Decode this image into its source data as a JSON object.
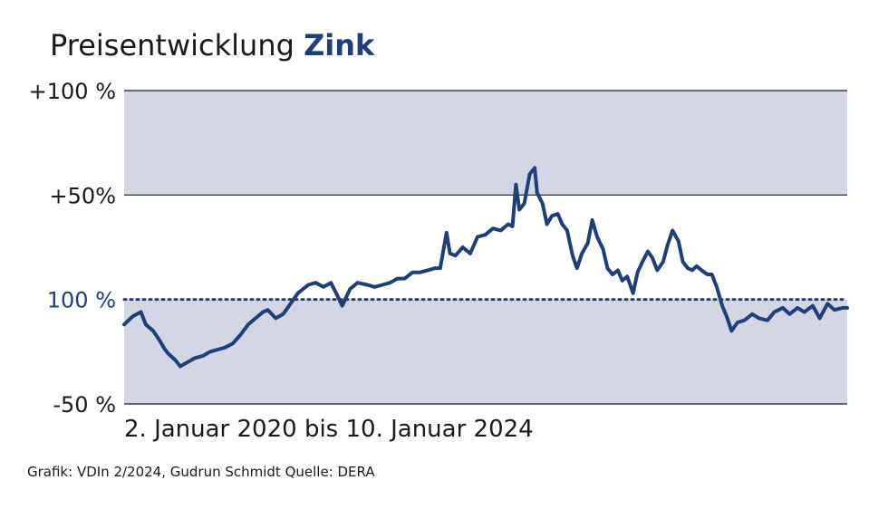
{
  "header": {
    "title_prefix": "Preisentwicklung",
    "title_accent": "Zink"
  },
  "footer": {
    "period": "2. Januar 2020 bis 10. Januar 2024",
    "source": "Grafik: VDIn 2/2024, Gudrun Schmidt Quelle: DERA"
  },
  "colors": {
    "line": "#1e3f7a",
    "band": "#d3d6e5",
    "grid": "#1a1a1a",
    "accent": "#1e3f7a"
  },
  "chart_data": {
    "type": "line",
    "title": "Preisentwicklung Zink",
    "xlabel": "2. Januar 2020 bis 10. Januar 2024",
    "ylabel": "",
    "x_start": "2020-01-02",
    "x_end": "2024-01-10",
    "ylim": [
      -50,
      100
    ],
    "y_ticks": [
      {
        "value": 100,
        "label": "+100 %"
      },
      {
        "value": 50,
        "label": "+50%"
      },
      {
        "value": 0,
        "label": "100 %"
      },
      {
        "value": -50,
        "label": "-50 %"
      }
    ],
    "baseline": {
      "value": 0,
      "style": "dotted"
    },
    "shaded_bands": [
      [
        50,
        100
      ],
      [
        -50,
        0
      ]
    ],
    "grid": false,
    "series": [
      {
        "values": [
          [
            "2020-01-02",
            -12
          ],
          [
            "2020-01-20",
            -8
          ],
          [
            "2020-02-05",
            -6
          ],
          [
            "2020-02-15",
            -12
          ],
          [
            "2020-03-01",
            -15
          ],
          [
            "2020-03-15",
            -20
          ],
          [
            "2020-03-25",
            -24
          ],
          [
            "2020-04-01",
            -26
          ],
          [
            "2020-04-15",
            -29
          ],
          [
            "2020-04-25",
            -32
          ],
          [
            "2020-05-10",
            -30
          ],
          [
            "2020-05-25",
            -28
          ],
          [
            "2020-06-10",
            -27
          ],
          [
            "2020-06-25",
            -25
          ],
          [
            "2020-07-10",
            -24
          ],
          [
            "2020-07-25",
            -23
          ],
          [
            "2020-08-10",
            -21
          ],
          [
            "2020-08-25",
            -17
          ],
          [
            "2020-09-10",
            -12
          ],
          [
            "2020-09-25",
            -9
          ],
          [
            "2020-10-10",
            -6
          ],
          [
            "2020-10-20",
            -5
          ],
          [
            "2020-11-05",
            -9
          ],
          [
            "2020-11-20",
            -7
          ],
          [
            "2020-12-05",
            -2
          ],
          [
            "2020-12-20",
            3
          ],
          [
            "2021-01-10",
            7
          ],
          [
            "2021-01-25",
            8
          ],
          [
            "2021-02-10",
            6
          ],
          [
            "2021-02-25",
            8
          ],
          [
            "2021-03-10",
            2
          ],
          [
            "2021-03-20",
            -3
          ],
          [
            "2021-04-05",
            5
          ],
          [
            "2021-04-20",
            8
          ],
          [
            "2021-05-10",
            7
          ],
          [
            "2021-05-25",
            6
          ],
          [
            "2021-06-10",
            7
          ],
          [
            "2021-06-25",
            8
          ],
          [
            "2021-07-10",
            10
          ],
          [
            "2021-07-25",
            10
          ],
          [
            "2021-08-10",
            13
          ],
          [
            "2021-08-25",
            13
          ],
          [
            "2021-09-10",
            14
          ],
          [
            "2021-09-25",
            15
          ],
          [
            "2021-10-05",
            15
          ],
          [
            "2021-10-18",
            32
          ],
          [
            "2021-10-25",
            22
          ],
          [
            "2021-11-05",
            21
          ],
          [
            "2021-11-20",
            25
          ],
          [
            "2021-12-05",
            22
          ],
          [
            "2021-12-20",
            30
          ],
          [
            "2022-01-05",
            31
          ],
          [
            "2022-01-20",
            34
          ],
          [
            "2022-02-05",
            33
          ],
          [
            "2022-02-20",
            36
          ],
          [
            "2022-03-01",
            35
          ],
          [
            "2022-03-08",
            55
          ],
          [
            "2022-03-15",
            43
          ],
          [
            "2022-03-25",
            46
          ],
          [
            "2022-04-05",
            60
          ],
          [
            "2022-04-15",
            63
          ],
          [
            "2022-04-20",
            51
          ],
          [
            "2022-05-01",
            46
          ],
          [
            "2022-05-10",
            36
          ],
          [
            "2022-05-20",
            40
          ],
          [
            "2022-06-01",
            41
          ],
          [
            "2022-06-10",
            36
          ],
          [
            "2022-06-20",
            33
          ],
          [
            "2022-07-01",
            21
          ],
          [
            "2022-07-10",
            15
          ],
          [
            "2022-07-20",
            22
          ],
          [
            "2022-08-01",
            27
          ],
          [
            "2022-08-10",
            38
          ],
          [
            "2022-08-20",
            30
          ],
          [
            "2022-09-01",
            24
          ],
          [
            "2022-09-10",
            15
          ],
          [
            "2022-09-20",
            12
          ],
          [
            "2022-10-01",
            14
          ],
          [
            "2022-10-10",
            9
          ],
          [
            "2022-10-20",
            11
          ],
          [
            "2022-11-01",
            3
          ],
          [
            "2022-11-10",
            13
          ],
          [
            "2022-11-20",
            18
          ],
          [
            "2022-12-01",
            23
          ],
          [
            "2022-12-10",
            20
          ],
          [
            "2022-12-20",
            14
          ],
          [
            "2023-01-01",
            18
          ],
          [
            "2023-01-10",
            26
          ],
          [
            "2023-01-20",
            33
          ],
          [
            "2023-02-01",
            28
          ],
          [
            "2023-02-10",
            18
          ],
          [
            "2023-02-20",
            15
          ],
          [
            "2023-03-01",
            14
          ],
          [
            "2023-03-10",
            16
          ],
          [
            "2023-03-20",
            14
          ],
          [
            "2023-04-01",
            12
          ],
          [
            "2023-04-10",
            12
          ],
          [
            "2023-04-20",
            6
          ],
          [
            "2023-05-01",
            -3
          ],
          [
            "2023-05-10",
            -8
          ],
          [
            "2023-05-20",
            -15
          ],
          [
            "2023-06-01",
            -11
          ],
          [
            "2023-06-15",
            -10
          ],
          [
            "2023-07-01",
            -7
          ],
          [
            "2023-07-15",
            -9
          ],
          [
            "2023-08-01",
            -10
          ],
          [
            "2023-08-15",
            -6
          ],
          [
            "2023-09-01",
            -4
          ],
          [
            "2023-09-15",
            -7
          ],
          [
            "2023-10-01",
            -4
          ],
          [
            "2023-10-15",
            -6
          ],
          [
            "2023-11-01",
            -3
          ],
          [
            "2023-11-15",
            -9
          ],
          [
            "2023-12-01",
            -2
          ],
          [
            "2023-12-15",
            -5
          ],
          [
            "2024-01-01",
            -4
          ],
          [
            "2024-01-10",
            -4
          ]
        ]
      }
    ]
  }
}
